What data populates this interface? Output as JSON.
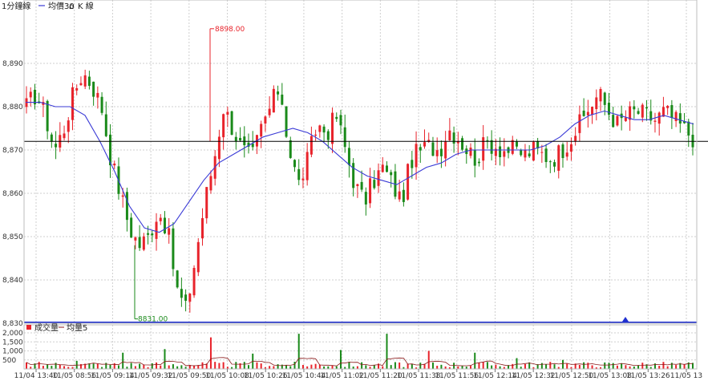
{
  "legend": {
    "period_label": "1分鐘線",
    "ma_label": "均價30",
    "ma_marker": "⌂",
    "kline_label": "K 線",
    "volume_label": "成交量",
    "volume_ma_label": "均量5"
  },
  "colors": {
    "up": "#e8232b",
    "down": "#1a8a1a",
    "ma": "#3b3bd6",
    "hline": "#000000",
    "baseline": "#1f2fd0",
    "grid": "#cfcfcf",
    "vol_ma": "#8b1a1a",
    "marker": "#1f2fd0"
  },
  "chart_data": [
    {
      "type": "candlestick",
      "title": "",
      "ylim": [
        8830,
        8900
      ],
      "y_ticks": [
        "8,830",
        "8,840",
        "8,850",
        "8,860",
        "8,870",
        "8,880",
        "8,890"
      ],
      "x_ticks": [
        "11/04 13:40",
        "11/05 08:56",
        "11/05 09:14",
        "11/05 09:32",
        "11/05 09:50",
        "11/05 10:08",
        "11/05 10:26",
        "11/05 10:44",
        "11/05 11:02",
        "11/05 11:20",
        "11/05 11:38",
        "11/05 11:56",
        "11/05 12:14",
        "11/05 12:32",
        "11/05 12:50",
        "11/05 13:08",
        "11/05 13:26",
        "11/05 13"
      ],
      "grid": true,
      "reference_line": 8872,
      "annotations": [
        {
          "label": "8898.00",
          "value": 8898
        },
        {
          "label": "8831.00",
          "value": 8831
        }
      ],
      "close_profile": [
        8880,
        8883,
        8878,
        8870,
        8875,
        8883,
        8888,
        8885,
        8880,
        8868,
        8860,
        8852,
        8848,
        8850,
        8856,
        8852,
        8838,
        8833,
        8845,
        8858,
        8868,
        8880,
        8875,
        8870,
        8868,
        8875,
        8880,
        8885,
        8870,
        8862,
        8868,
        8876,
        8874,
        8878,
        8870,
        8862,
        8858,
        8863,
        8866,
        8862,
        8858,
        8868,
        8870,
        8871,
        8870,
        8875,
        8873,
        8870,
        8868,
        8872,
        8871,
        8870,
        8870,
        8869,
        8870,
        8869,
        8868,
        8870,
        8873,
        8876,
        8880,
        8883,
        8879,
        8876,
        8878,
        8879,
        8878,
        8877,
        8879,
        8877,
        8875,
        8873
      ],
      "moving_average_30": [
        8881,
        8881,
        8880,
        8880,
        8878,
        8872,
        8865,
        8857,
        8852,
        8851,
        8853,
        8858,
        8863,
        8867,
        8869,
        8871,
        8873,
        8874,
        8875,
        8874,
        8872,
        8869,
        8866,
        8864,
        8863,
        8862,
        8864,
        8866,
        8867,
        8869,
        8870,
        8870,
        8870,
        8870,
        8870,
        8871,
        8873,
        8876,
        8878,
        8879,
        8878,
        8877,
        8877,
        8878,
        8877,
        8876
      ],
      "candle_count": 160
    },
    {
      "type": "bar",
      "title": "",
      "ylim": [
        0,
        2000
      ],
      "y_ticks": [
        "500",
        "1,000",
        "1,500",
        "2,000"
      ],
      "spikes": [
        450,
        900,
        1100,
        1750,
        850,
        1950,
        1050,
        1950,
        1000,
        900,
        600,
        500
      ],
      "base_volume": [
        80,
        400
      ]
    }
  ]
}
